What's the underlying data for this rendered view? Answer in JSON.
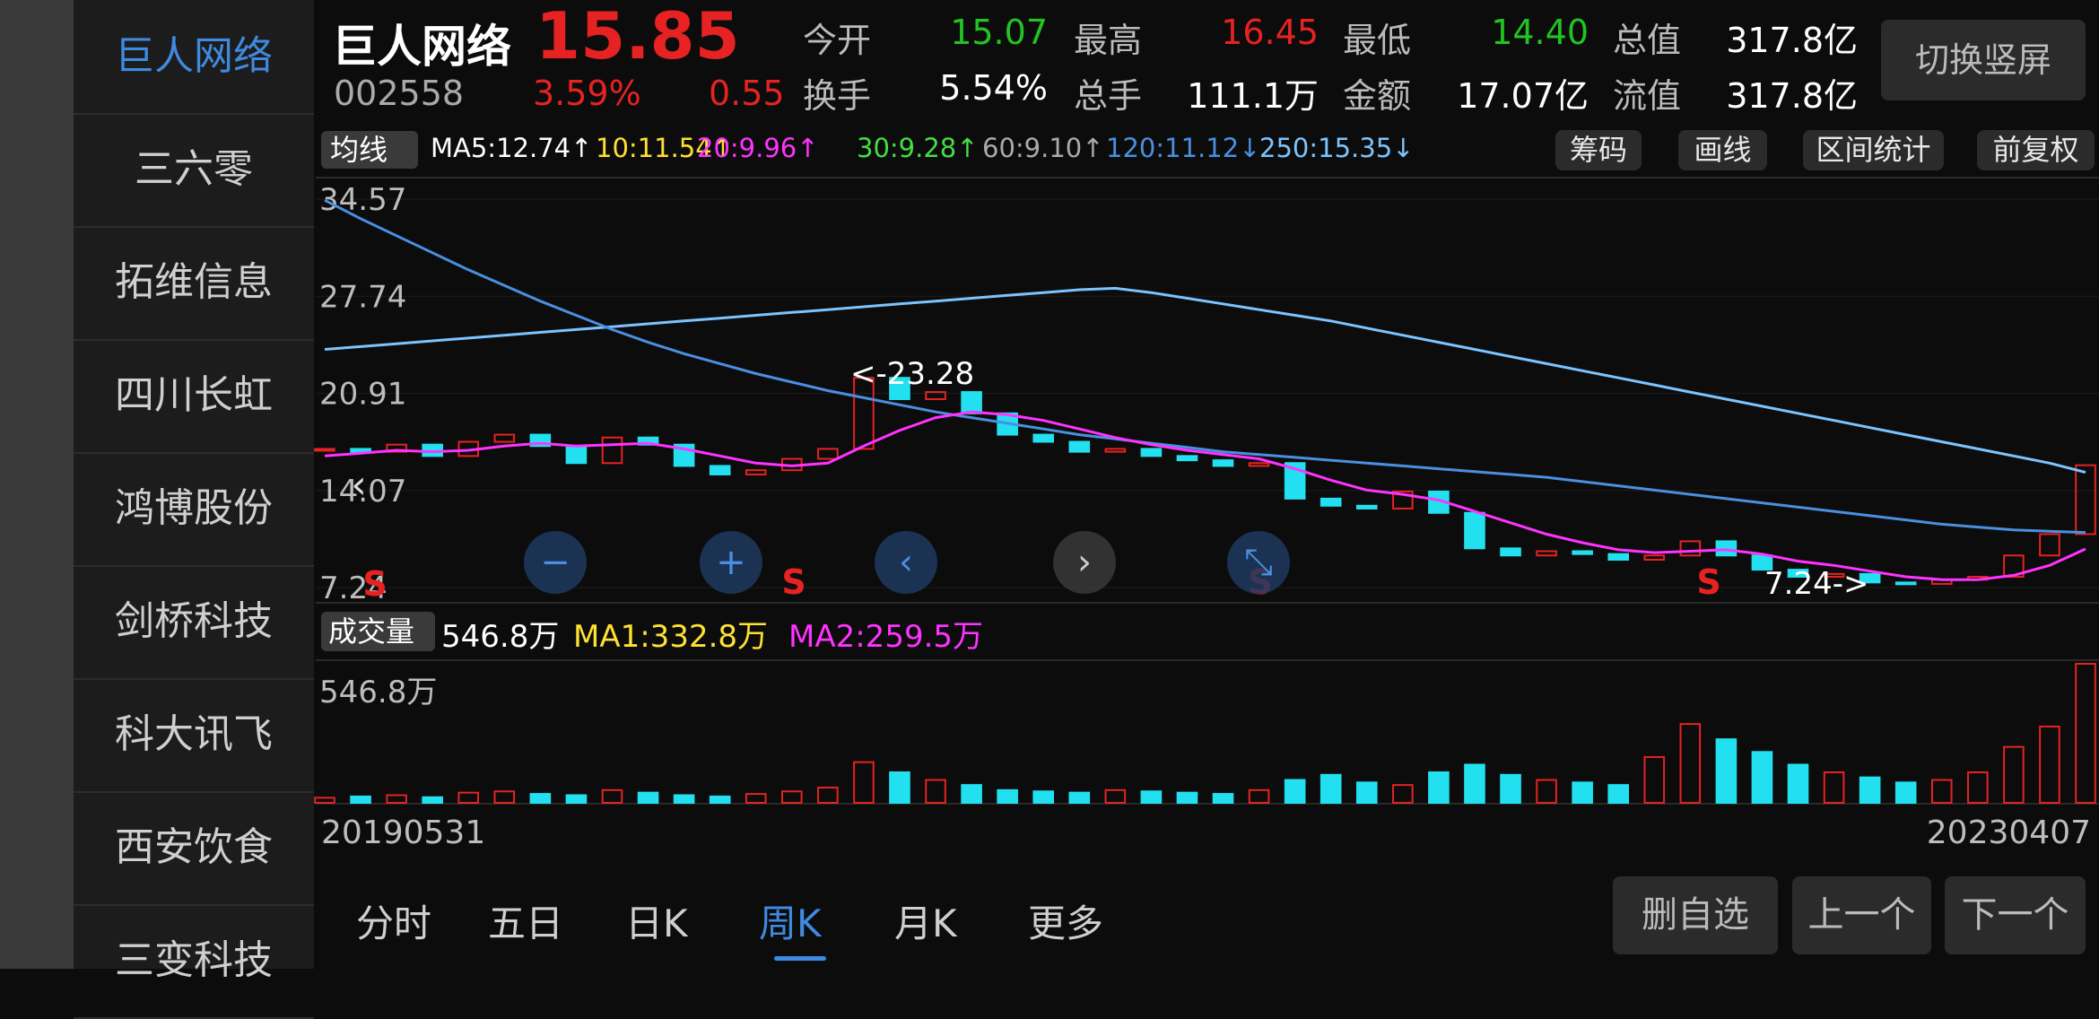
{
  "sidebar": {
    "stocks": [
      "巨人网络",
      "三六零",
      "拓维信息",
      "四川长虹",
      "鸿博股份",
      "剑桥科技",
      "科大讯飞",
      "西安饮食",
      "三变科技"
    ]
  },
  "header": {
    "name": "巨人网络",
    "price": "15.85",
    "code": "002558",
    "change_pct": "3.59%",
    "change": "0.55",
    "quotes": [
      {
        "label": "今开",
        "value": "15.07",
        "color": "#22c322"
      },
      {
        "label": "最高",
        "value": "16.45",
        "color": "#e62222"
      },
      {
        "label": "最低",
        "value": "14.40",
        "color": "#22c322"
      },
      {
        "label": "总值",
        "value": "317.8亿",
        "color": "#ffffff"
      },
      {
        "label": "换手",
        "value": "5.54%",
        "color": "#ffffff"
      },
      {
        "label": "总手",
        "value": "111.1万",
        "color": "#ffffff"
      },
      {
        "label": "金额",
        "value": "17.07亿",
        "color": "#ffffff"
      },
      {
        "label": "流值",
        "value": "317.8亿",
        "color": "#ffffff"
      }
    ],
    "switch_button": "切换竖屏"
  },
  "toolbar": {
    "ma_selector": "均线",
    "ma_values": [
      {
        "text": "MA5:12.74↑",
        "color": "#ffffff"
      },
      {
        "text": "10:11.54↑",
        "color": "#ffe033"
      },
      {
        "text": "20:9.96↑",
        "color": "#ff33ff"
      },
      {
        "text": "30:9.28↑",
        "color": "#44dd44"
      },
      {
        "text": "60:9.10↑",
        "color": "#aaaaaa"
      },
      {
        "text": "120:11.12↓",
        "color": "#4a8fe0"
      },
      {
        "text": "250:15.35↓",
        "color": "#7cc4ff"
      }
    ],
    "buttons": [
      "筹码",
      "画线",
      "区间统计",
      "前复权"
    ]
  },
  "price_chart": {
    "ylim": [
      6.17,
      36.09
    ],
    "yticks": [
      34.57,
      27.74,
      20.91,
      14.07,
      7.24
    ],
    "annotations": {
      "high": "<-23.28",
      "low": "7.24->"
    },
    "signal": "S",
    "closes": [
      17.0,
      16.8,
      17.3,
      16.5,
      17.5,
      18.0,
      17.2,
      16.0,
      17.8,
      17.3,
      15.8,
      15.2,
      15.5,
      16.3,
      17.0,
      22.0,
      20.5,
      21.0,
      19.5,
      18.0,
      17.5,
      16.8,
      17.0,
      16.5,
      16.2,
      15.8,
      16.0,
      13.5,
      13.0,
      12.8,
      14.0,
      12.5,
      10.0,
      9.5,
      9.8,
      9.6,
      9.2,
      9.5,
      10.5,
      9.5,
      8.5,
      8.0,
      8.2,
      7.6,
      7.5,
      7.8,
      8.0,
      9.5,
      11.0,
      15.85
    ],
    "ma20": [
      16.5,
      16.7,
      16.9,
      16.8,
      16.9,
      17.2,
      17.4,
      17.2,
      17.3,
      17.4,
      17.0,
      16.5,
      16.0,
      15.8,
      16.0,
      17.2,
      18.3,
      19.2,
      19.6,
      19.4,
      19.0,
      18.4,
      17.8,
      17.3,
      16.9,
      16.6,
      16.3,
      15.6,
      14.8,
      14.1,
      13.8,
      13.4,
      12.6,
      11.8,
      11.0,
      10.4,
      9.9,
      9.7,
      9.8,
      9.9,
      9.6,
      9.1,
      8.8,
      8.4,
      8.0,
      7.8,
      7.8,
      8.1,
      8.8,
      9.96
    ],
    "ma120": [
      34.5,
      33.2,
      32.0,
      30.8,
      29.6,
      28.5,
      27.4,
      26.4,
      25.4,
      24.5,
      23.7,
      23.0,
      22.3,
      21.7,
      21.1,
      20.6,
      20.1,
      19.6,
      19.2,
      18.8,
      18.4,
      18.0,
      17.7,
      17.4,
      17.1,
      16.8,
      16.6,
      16.4,
      16.2,
      16.0,
      15.8,
      15.6,
      15.4,
      15.2,
      15.0,
      14.7,
      14.4,
      14.1,
      13.8,
      13.5,
      13.2,
      12.9,
      12.6,
      12.3,
      12.0,
      11.7,
      11.5,
      11.3,
      11.2,
      11.12
    ],
    "ma250": [
      24.0,
      24.2,
      24.4,
      24.6,
      24.8,
      25.0,
      25.2,
      25.4,
      25.6,
      25.8,
      26.0,
      26.2,
      26.4,
      26.6,
      26.8,
      27.0,
      27.2,
      27.4,
      27.6,
      27.8,
      28.0,
      28.2,
      28.3,
      28.0,
      27.6,
      27.2,
      26.8,
      26.4,
      26.0,
      25.5,
      25.0,
      24.5,
      24.0,
      23.5,
      23.0,
      22.5,
      22.0,
      21.5,
      21.0,
      20.5,
      20.0,
      19.5,
      19.0,
      18.5,
      18.0,
      17.5,
      17.0,
      16.5,
      16.0,
      15.35
    ]
  },
  "volume_header": {
    "selector": "成交量",
    "latest": "546.8万",
    "ma1": "MA1:332.8万",
    "ma2": "MA2:259.5万"
  },
  "volume_chart": {
    "label": "546.8万",
    "ylim": [
      0,
      546.8
    ],
    "values": [
      20,
      25,
      30,
      22,
      40,
      45,
      35,
      30,
      50,
      40,
      30,
      25,
      35,
      45,
      60,
      160,
      120,
      90,
      70,
      50,
      45,
      40,
      50,
      45,
      40,
      35,
      50,
      90,
      110,
      80,
      70,
      120,
      150,
      110,
      90,
      80,
      70,
      180,
      310,
      250,
      200,
      150,
      120,
      100,
      80,
      90,
      120,
      220,
      300,
      546.8
    ]
  },
  "dates": {
    "start": "20190531",
    "end": "20230407"
  },
  "tabs": [
    "分时",
    "五日",
    "日K",
    "周K",
    "月K",
    "更多"
  ],
  "active_tab": 3,
  "actions": [
    "删自选",
    "上一个",
    "下一个"
  ]
}
